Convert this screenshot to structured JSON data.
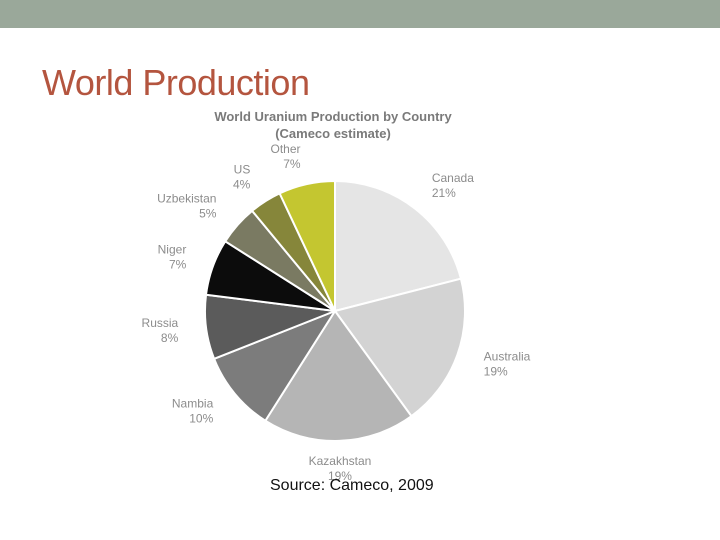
{
  "slide": {
    "title": "World Production",
    "source": "Source: Cameco, 2009"
  },
  "chart_data": {
    "type": "pie",
    "title": "World Uranium Production by Country",
    "subtitle": "(Cameco estimate)",
    "slices": [
      {
        "label": "Canada",
        "value": 21,
        "display": "21%",
        "color": "#e5e5e5"
      },
      {
        "label": "Australia",
        "value": 19,
        "display": "19%",
        "color": "#d3d3d3"
      },
      {
        "label": "Kazakhstan",
        "value": 19,
        "display": "19%",
        "color": "#b5b5b5"
      },
      {
        "label": "Nambia",
        "value": 10,
        "display": "10%",
        "color": "#7c7c7c"
      },
      {
        "label": "Russia",
        "value": 8,
        "display": "8%",
        "color": "#5b5b5b"
      },
      {
        "label": "Niger",
        "value": 7,
        "display": "7%",
        "color": "#0c0c0c"
      },
      {
        "label": "Uzbekistan",
        "value": 5,
        "display": "5%",
        "color": "#7a7a62"
      },
      {
        "label": "US",
        "value": 4,
        "display": "4%",
        "color": "#86863a"
      },
      {
        "label": "Other",
        "value": 7,
        "display": "7%",
        "color": "#c4c630"
      }
    ],
    "label_color": "#8c8c8c",
    "title_color": "#7a7a7a"
  }
}
